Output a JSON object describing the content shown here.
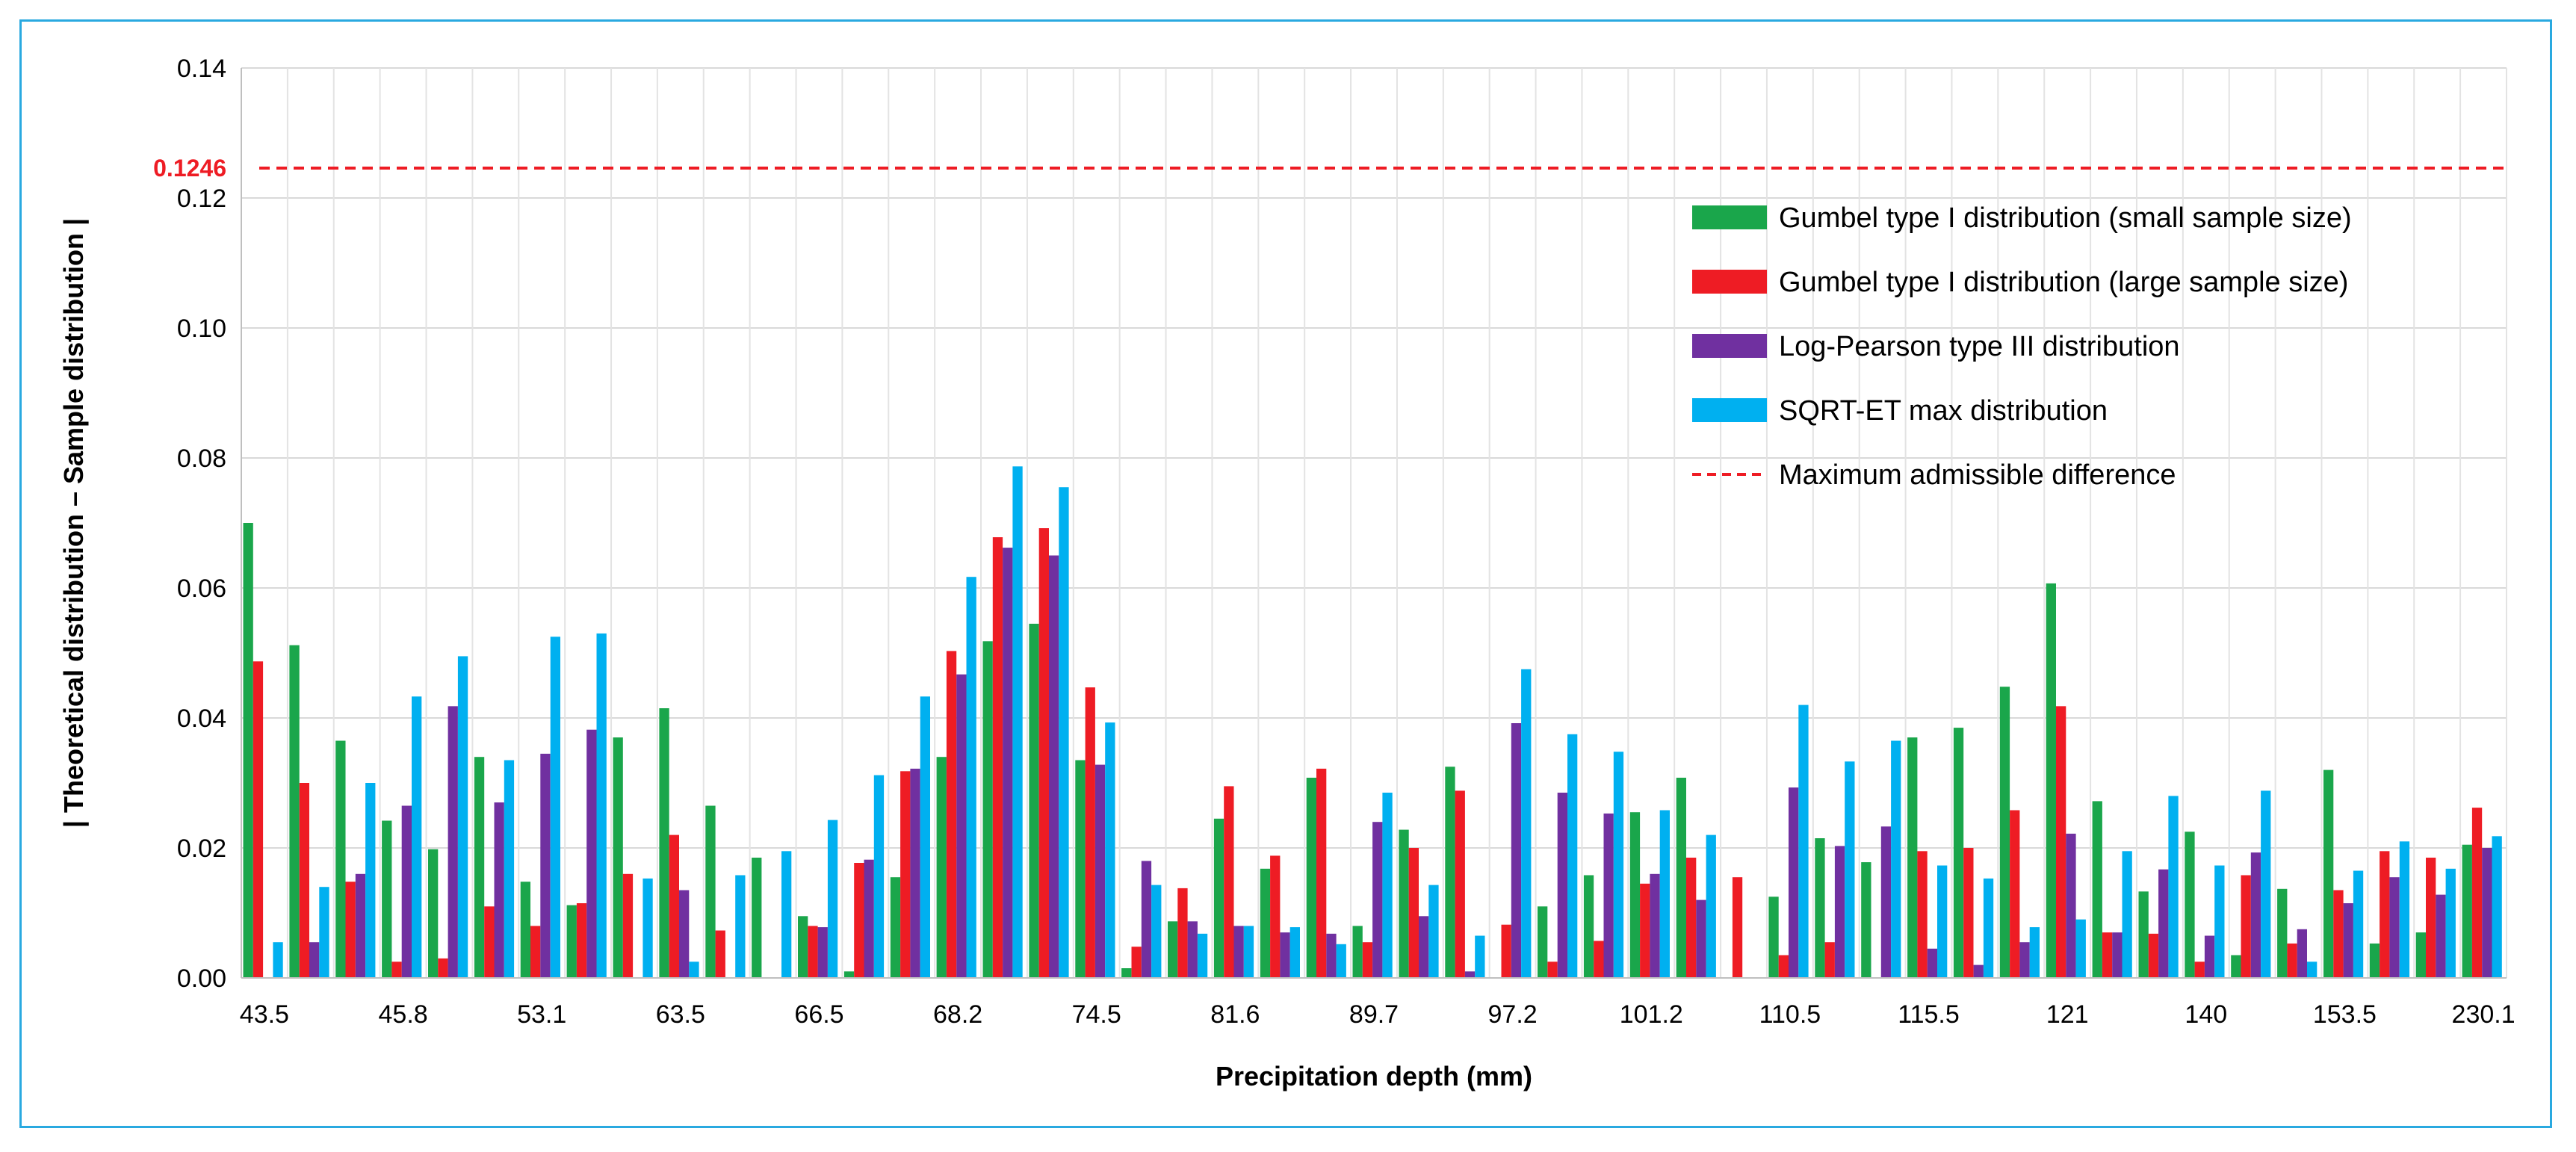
{
  "chart_data": {
    "type": "bar",
    "xlabel": "Precipitation depth (mm)",
    "ylabel": "| Theoretical distribution – Sample distribution |",
    "ylim": [
      0,
      0.14
    ],
    "yticks": [
      "0.00",
      "0.02",
      "0.04",
      "0.06",
      "0.08",
      "0.10",
      "0.12",
      "0.14"
    ],
    "grid": true,
    "legend_position": "top-right",
    "x_tick_labels": [
      "43.5",
      "45.8",
      "53.1",
      "63.5",
      "66.5",
      "68.2",
      "74.5",
      "81.6",
      "89.7",
      "97.2",
      "101.2",
      "110.5",
      "115.5",
      "121",
      "140",
      "153.5",
      "230.1"
    ],
    "x_tick_every": 3,
    "n_groups": 49,
    "series": [
      {
        "name": "Gumbel type I distribution (small sample size)",
        "color": "#1aa64b",
        "values": [
          0.07,
          0.0512,
          0.0365,
          0.0242,
          0.0198,
          0.034,
          0.0148,
          0.0112,
          0.037,
          0.0415,
          0.0265,
          0.0185,
          0.0095,
          0.001,
          0.0155,
          0.034,
          0.0518,
          0.0545,
          0.0335,
          0.0015,
          0.0087,
          0.0245,
          0.0168,
          0.0308,
          0.008,
          0.0228,
          0.0325,
          0.0,
          0.011,
          0.0158,
          0.0255,
          0.0308,
          0.0,
          0.0125,
          0.0215,
          0.0178,
          0.037,
          0.0385,
          0.0448,
          0.0607,
          0.0272,
          0.0133,
          0.0225,
          0.0035,
          0.0137,
          0.032,
          0.0053,
          0.007,
          0.0205
        ]
      },
      {
        "name": "Gumbel type I distribution (large sample size)",
        "color": "#ee1c24",
        "values": [
          0.0487,
          0.03,
          0.0148,
          0.0025,
          0.003,
          0.011,
          0.008,
          0.0115,
          0.016,
          0.022,
          0.0073,
          0.0,
          0.008,
          0.0177,
          0.0318,
          0.0503,
          0.0678,
          0.0692,
          0.0447,
          0.0048,
          0.0138,
          0.0295,
          0.0188,
          0.0322,
          0.0055,
          0.02,
          0.0288,
          0.0082,
          0.0025,
          0.0057,
          0.0145,
          0.0185,
          0.0155,
          0.0035,
          0.0055,
          0.0,
          0.0195,
          0.02,
          0.0258,
          0.0418,
          0.007,
          0.0068,
          0.0025,
          0.0158,
          0.0053,
          0.0135,
          0.0195,
          0.0185,
          0.0262
        ]
      },
      {
        "name": "Log-Pearson type III distribution",
        "color": "#7030a0",
        "values": [
          0.0,
          0.0055,
          0.016,
          0.0265,
          0.0418,
          0.027,
          0.0345,
          0.0382,
          0.0,
          0.0135,
          0.0,
          0.0,
          0.0078,
          0.0182,
          0.0322,
          0.0467,
          0.0662,
          0.065,
          0.0328,
          0.018,
          0.0087,
          0.008,
          0.007,
          0.0068,
          0.024,
          0.0095,
          0.001,
          0.0392,
          0.0285,
          0.0253,
          0.016,
          0.012,
          0.0,
          0.0293,
          0.0203,
          0.0233,
          0.0045,
          0.002,
          0.0055,
          0.0222,
          0.007,
          0.0167,
          0.0065,
          0.0193,
          0.0075,
          0.0115,
          0.0155,
          0.0128,
          0.02
        ]
      },
      {
        "name": "SQRT-ET max distribution",
        "color": "#00b0f0",
        "values": [
          0.0055,
          0.014,
          0.03,
          0.0433,
          0.0495,
          0.0335,
          0.0525,
          0.053,
          0.0153,
          0.0025,
          0.0158,
          0.0195,
          0.0243,
          0.0312,
          0.0433,
          0.0617,
          0.0787,
          0.0755,
          0.0393,
          0.0143,
          0.0068,
          0.008,
          0.0078,
          0.0052,
          0.0285,
          0.0143,
          0.0065,
          0.0475,
          0.0375,
          0.0348,
          0.0258,
          0.022,
          0.0,
          0.042,
          0.0333,
          0.0365,
          0.0173,
          0.0153,
          0.0078,
          0.009,
          0.0195,
          0.028,
          0.0173,
          0.0288,
          0.0025,
          0.0165,
          0.021,
          0.0168,
          0.0218
        ]
      }
    ],
    "reference_line": {
      "name": "Maximum admissible difference",
      "value": 0.1246,
      "label": "0.1246",
      "color": "#ee1c24",
      "style": "dashed"
    }
  }
}
